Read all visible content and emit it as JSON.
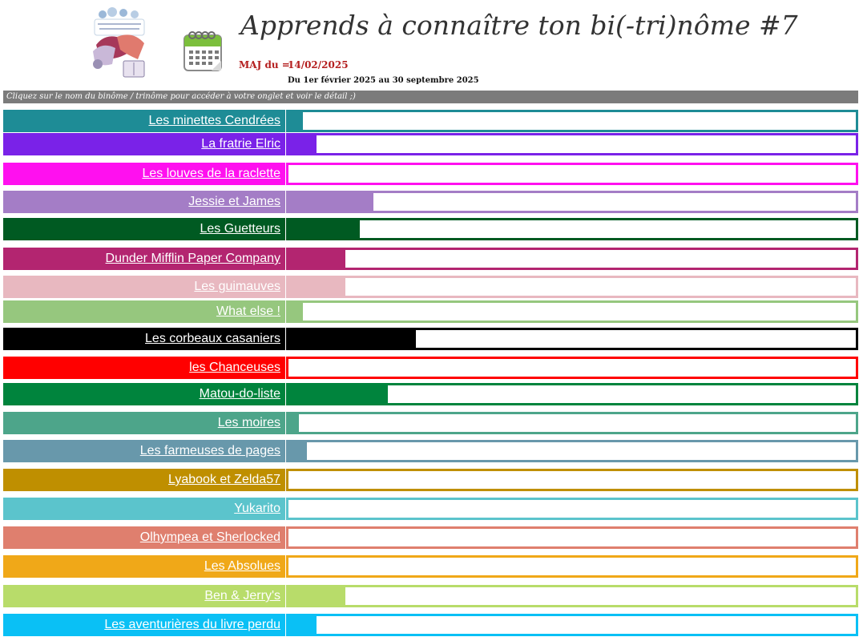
{
  "header": {
    "title": "Apprends à connaître ton bi(-tri)nôme #7",
    "maj_label": "MAJ du =",
    "maj_date": "14/02/2025",
    "period": "Du 1er février 2025 au 30 septembre 2025",
    "logo_icon": "book-club-logo-icon",
    "calendar_icon": "calendar-icon"
  },
  "instructions": "Cliquez sur le nom du binôme / trinôme pour accéder à votre onglet et voir le détail ;)",
  "teams": [
    {
      "name": "Les minettes Cendrées",
      "color": "#1e8c96",
      "progress": 0.025
    },
    {
      "name": "La fratrie Elric",
      "color": "#7a22e8",
      "progress": 0.05
    },
    {
      "name": "Les louves de la raclette",
      "color": "#ff10ef",
      "progress": 0
    },
    {
      "name": "Jessie et James",
      "color": "#a47dc6",
      "progress": 0.15
    },
    {
      "name": "Les Guetteurs",
      "color": "#005a22",
      "progress": 0.125
    },
    {
      "name": "Dunder Mifflin Paper Company",
      "color": "#b32570",
      "progress": 0.1
    },
    {
      "name": "Les guimauves",
      "color": "#e8b8c0",
      "progress": 0.1
    },
    {
      "name": "What else !",
      "color": "#96c77e",
      "progress": 0.025
    },
    {
      "name": "Les corbeaux casaniers",
      "color": "#000000",
      "progress": 0.225
    },
    {
      "name": "les Chanceuses",
      "color": "#ff0000",
      "progress": 0
    },
    {
      "name": "Matou-do-liste",
      "color": "#00843d",
      "progress": 0.175
    },
    {
      "name": "Les moires",
      "color": "#4da58a",
      "progress": 0.018
    },
    {
      "name": "Les farmeuses de pages",
      "color": "#6898ab",
      "progress": 0.033
    },
    {
      "name": "Lyabook et Zelda57",
      "color": "#bf8f00",
      "progress": 0
    },
    {
      "name": "Yukarito",
      "color": "#5bc4cc",
      "progress": 0
    },
    {
      "name": "Olhympea et Sherlocked",
      "color": "#df7f6e",
      "progress": 0
    },
    {
      "name": "Les Absolues",
      "color": "#f0a818",
      "progress": 0
    },
    {
      "name": "Ben & Jerry's",
      "color": "#b8dc6a",
      "progress": 0.1
    },
    {
      "name": "Les aventurières du livre perdu",
      "color": "#0ac0f5",
      "progress": 0.05
    }
  ]
}
